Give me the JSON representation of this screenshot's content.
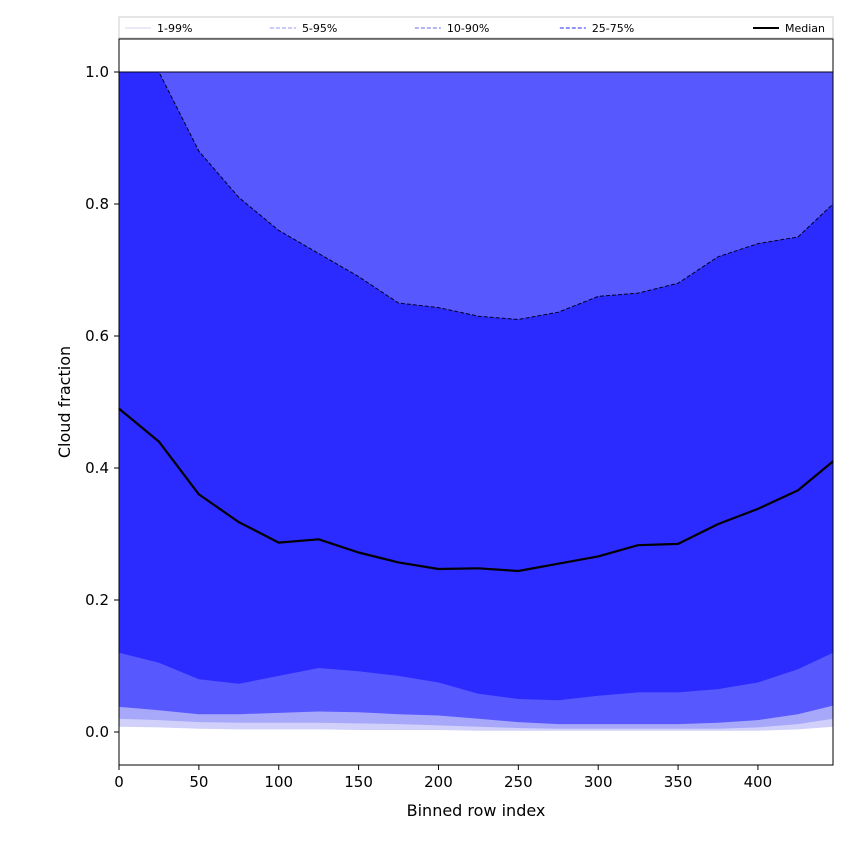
{
  "chart_data": {
    "type": "area",
    "title": "",
    "xlabel": "Binned row index",
    "ylabel": "Cloud fraction",
    "xlim": [
      0,
      447
    ],
    "ylim": [
      -0.05,
      1.05
    ],
    "xticks": [
      0,
      50,
      100,
      150,
      200,
      250,
      300,
      350,
      400
    ],
    "xtick_labels": [
      "0",
      "50",
      "100",
      "150",
      "200",
      "250",
      "300",
      "350",
      "400"
    ],
    "yticks": [
      0.0,
      0.2,
      0.4,
      0.6,
      0.8,
      1.0
    ],
    "ytick_labels": [
      "0.0",
      "0.2",
      "0.4",
      "0.6",
      "0.8",
      "1.0"
    ],
    "grid": false,
    "legend": {
      "placement": "top, above plot, single row",
      "entries": [
        {
          "label": "1-99%",
          "color": "#dcdcf6",
          "style": "solid"
        },
        {
          "label": "5-95%",
          "color": "#aaaaf2",
          "style": "dashed"
        },
        {
          "label": "10-90%",
          "color": "#8888f0",
          "style": "dashed"
        },
        {
          "label": "25-75%",
          "color": "#5555ee",
          "style": "dashed"
        },
        {
          "label": "Median",
          "color": "#000000",
          "style": "solid"
        }
      ]
    },
    "x": [
      0,
      25,
      50,
      75,
      100,
      125,
      150,
      175,
      200,
      225,
      250,
      275,
      300,
      325,
      350,
      375,
      400,
      425,
      447
    ],
    "bands": [
      {
        "name": "1-99%",
        "color": "#d0d0fa",
        "lower": [
          0.008,
          0.007,
          0.005,
          0.004,
          0.004,
          0.004,
          0.003,
          0.003,
          0.003,
          0.002,
          0.002,
          0.002,
          0.002,
          0.002,
          0.002,
          0.002,
          0.002,
          0.004,
          0.008
        ],
        "upper": [
          1.0,
          1.0,
          1.0,
          1.0,
          1.0,
          1.0,
          1.0,
          1.0,
          1.0,
          1.0,
          1.0,
          1.0,
          1.0,
          1.0,
          1.0,
          1.0,
          1.0,
          1.0,
          1.0
        ]
      },
      {
        "name": "5-95%",
        "color": "#a8a8fa",
        "lower": [
          0.02,
          0.018,
          0.015,
          0.014,
          0.014,
          0.014,
          0.013,
          0.012,
          0.01,
          0.008,
          0.006,
          0.005,
          0.005,
          0.005,
          0.005,
          0.005,
          0.007,
          0.012,
          0.02
        ],
        "upper": [
          1.0,
          1.0,
          1.0,
          1.0,
          1.0,
          1.0,
          1.0,
          1.0,
          1.0,
          1.0,
          1.0,
          1.0,
          1.0,
          1.0,
          1.0,
          1.0,
          1.0,
          1.0,
          1.0
        ]
      },
      {
        "name": "10-90%",
        "color": "#5858ff",
        "lower": [
          0.038,
          0.033,
          0.027,
          0.027,
          0.029,
          0.031,
          0.03,
          0.027,
          0.025,
          0.02,
          0.015,
          0.012,
          0.012,
          0.012,
          0.012,
          0.014,
          0.018,
          0.027,
          0.04
        ],
        "upper": [
          1.0,
          1.0,
          1.0,
          1.0,
          1.0,
          1.0,
          1.0,
          1.0,
          1.0,
          1.0,
          1.0,
          1.0,
          1.0,
          1.0,
          1.0,
          1.0,
          1.0,
          1.0,
          1.0
        ]
      },
      {
        "name": "25-75%",
        "color": "#2b2bff",
        "lower": [
          0.12,
          0.105,
          0.08,
          0.073,
          0.085,
          0.097,
          0.092,
          0.085,
          0.075,
          0.058,
          0.05,
          0.048,
          0.055,
          0.06,
          0.06,
          0.065,
          0.075,
          0.095,
          0.12
        ],
        "upper": [
          1.0,
          1.0,
          0.88,
          0.81,
          0.76,
          0.725,
          0.69,
          0.65,
          0.643,
          0.63,
          0.625,
          0.636,
          0.66,
          0.665,
          0.68,
          0.72,
          0.74,
          0.75,
          0.8
        ]
      }
    ],
    "median": [
      0.49,
      0.44,
      0.36,
      0.318,
      0.287,
      0.292,
      0.272,
      0.257,
      0.247,
      0.248,
      0.244,
      0.255,
      0.266,
      0.283,
      0.285,
      0.315,
      0.338,
      0.366,
      0.41
    ]
  }
}
